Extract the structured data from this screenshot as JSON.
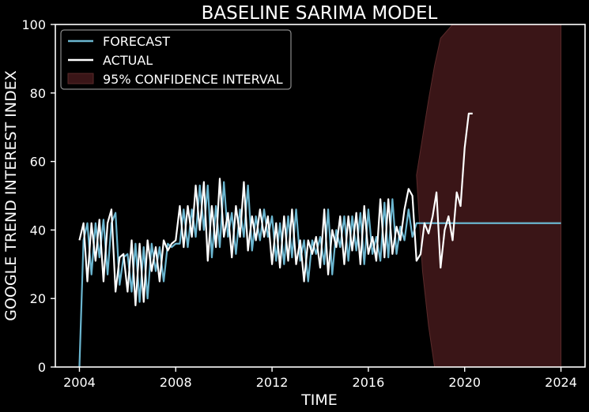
{
  "chart_data": {
    "type": "line",
    "title": "BASELINE SARIMA MODEL",
    "xlabel": "TIME",
    "ylabel": "GOOGLE TREND INTEREST INDEX",
    "xlim": [
      2003.0,
      2025.0
    ],
    "ylim": [
      0,
      100
    ],
    "xticks": [
      2004,
      2008,
      2012,
      2016,
      2020,
      2024
    ],
    "yticks": [
      0,
      20,
      40,
      60,
      80,
      100
    ],
    "grid": false,
    "legend_position": "top-left",
    "colors": {
      "background": "#000000",
      "forecast": "#6bb6d0",
      "actual": "#ffffff",
      "confidence_fill": "#3a1517",
      "confidence_edge": "#5a2a2a"
    },
    "series": [
      {
        "name": "FORECAST",
        "x": [
          2004.0,
          2004.17,
          2004.33,
          2004.5,
          2004.67,
          2004.83,
          2005.0,
          2005.17,
          2005.33,
          2005.5,
          2005.67,
          2005.83,
          2006.0,
          2006.17,
          2006.33,
          2006.5,
          2006.67,
          2006.83,
          2007.0,
          2007.17,
          2007.33,
          2007.5,
          2007.67,
          2007.83,
          2008.0,
          2008.17,
          2008.33,
          2008.5,
          2008.67,
          2008.83,
          2009.0,
          2009.17,
          2009.33,
          2009.5,
          2009.67,
          2009.83,
          2010.0,
          2010.17,
          2010.33,
          2010.5,
          2010.67,
          2010.83,
          2011.0,
          2011.17,
          2011.33,
          2011.5,
          2011.67,
          2011.83,
          2012.0,
          2012.17,
          2012.33,
          2012.5,
          2012.67,
          2012.83,
          2013.0,
          2013.17,
          2013.33,
          2013.5,
          2013.67,
          2013.83,
          2014.0,
          2014.17,
          2014.33,
          2014.5,
          2014.67,
          2014.83,
          2015.0,
          2015.17,
          2015.33,
          2015.5,
          2015.67,
          2015.83,
          2016.0,
          2016.17,
          2016.33,
          2016.5,
          2016.67,
          2016.83,
          2017.0,
          2017.17,
          2017.33,
          2017.5,
          2017.67,
          2017.83,
          2018.0,
          2019.0,
          2020.0,
          2021.0,
          2022.0,
          2023.0,
          2024.0
        ],
        "values": [
          0,
          37,
          42,
          27,
          42,
          32,
          43,
          27,
          42,
          45,
          24,
          32,
          33,
          22,
          36,
          19,
          35,
          20,
          36,
          28,
          35,
          25,
          36,
          35,
          36,
          36,
          46,
          35,
          46,
          38,
          53,
          40,
          53,
          32,
          47,
          35,
          54,
          38,
          45,
          33,
          46,
          38,
          53,
          34,
          44,
          37,
          46,
          38,
          44,
          31,
          42,
          30,
          44,
          32,
          46,
          31,
          37,
          25,
          37,
          33,
          38,
          30,
          46,
          27,
          40,
          35,
          44,
          31,
          44,
          34,
          45,
          30,
          46,
          33,
          38,
          31,
          48,
          32,
          49,
          33,
          41,
          37,
          46,
          38,
          42,
          42,
          42,
          42,
          42,
          42,
          42
        ]
      },
      {
        "name": "ACTUAL",
        "x": [
          2004.0,
          2004.17,
          2004.33,
          2004.5,
          2004.67,
          2004.83,
          2005.0,
          2005.17,
          2005.33,
          2005.5,
          2005.67,
          2005.83,
          2006.0,
          2006.17,
          2006.33,
          2006.5,
          2006.67,
          2006.83,
          2007.0,
          2007.17,
          2007.33,
          2007.5,
          2007.67,
          2007.83,
          2008.0,
          2008.17,
          2008.33,
          2008.5,
          2008.67,
          2008.83,
          2009.0,
          2009.17,
          2009.33,
          2009.5,
          2009.67,
          2009.83,
          2010.0,
          2010.17,
          2010.33,
          2010.5,
          2010.67,
          2010.83,
          2011.0,
          2011.17,
          2011.33,
          2011.5,
          2011.67,
          2011.83,
          2012.0,
          2012.17,
          2012.33,
          2012.5,
          2012.67,
          2012.83,
          2013.0,
          2013.17,
          2013.33,
          2013.5,
          2013.67,
          2013.83,
          2014.0,
          2014.17,
          2014.33,
          2014.5,
          2014.67,
          2014.83,
          2015.0,
          2015.17,
          2015.33,
          2015.5,
          2015.67,
          2015.83,
          2016.0,
          2016.17,
          2016.33,
          2016.5,
          2016.67,
          2016.83,
          2017.0,
          2017.17,
          2017.33,
          2017.5,
          2017.67,
          2017.83,
          2018.0,
          2018.17,
          2018.33,
          2018.5,
          2018.67,
          2018.83,
          2019.0,
          2019.17,
          2019.33,
          2019.5,
          2019.67,
          2019.83,
          2020.0,
          2020.17,
          2020.33
        ],
        "values": [
          37,
          42,
          25,
          42,
          31,
          43,
          25,
          42,
          46,
          22,
          32,
          33,
          22,
          37,
          18,
          36,
          19,
          37,
          28,
          35,
          25,
          37,
          34,
          36,
          37,
          47,
          35,
          47,
          38,
          53,
          40,
          54,
          31,
          47,
          35,
          55,
          38,
          45,
          32,
          47,
          38,
          54,
          34,
          44,
          37,
          46,
          38,
          44,
          30,
          42,
          29,
          44,
          31,
          46,
          30,
          37,
          25,
          37,
          33,
          38,
          29,
          46,
          27,
          40,
          35,
          44,
          30,
          44,
          34,
          45,
          30,
          47,
          33,
          38,
          31,
          49,
          32,
          49,
          33,
          41,
          37,
          46,
          52,
          50,
          31,
          33,
          42,
          39,
          44,
          51,
          29,
          40,
          44,
          37,
          51,
          47,
          64,
          74,
          74
        ]
      }
    ],
    "confidence_interval": {
      "name": "95% CONFIDENCE INTERVAL",
      "x": [
        2018.0,
        2018.25,
        2018.5,
        2018.75,
        2019.0,
        2019.5,
        2020.0,
        2021.0,
        2022.0,
        2023.0,
        2024.0
      ],
      "lower": [
        56,
        28,
        12,
        0,
        0,
        0,
        0,
        0,
        0,
        0,
        0
      ],
      "upper": [
        56,
        67,
        78,
        88,
        96,
        100,
        100,
        100,
        100,
        100,
        100
      ],
      "lower_mid": [
        28,
        28,
        12,
        0,
        0,
        0,
        0,
        0,
        0,
        0,
        0
      ]
    }
  }
}
